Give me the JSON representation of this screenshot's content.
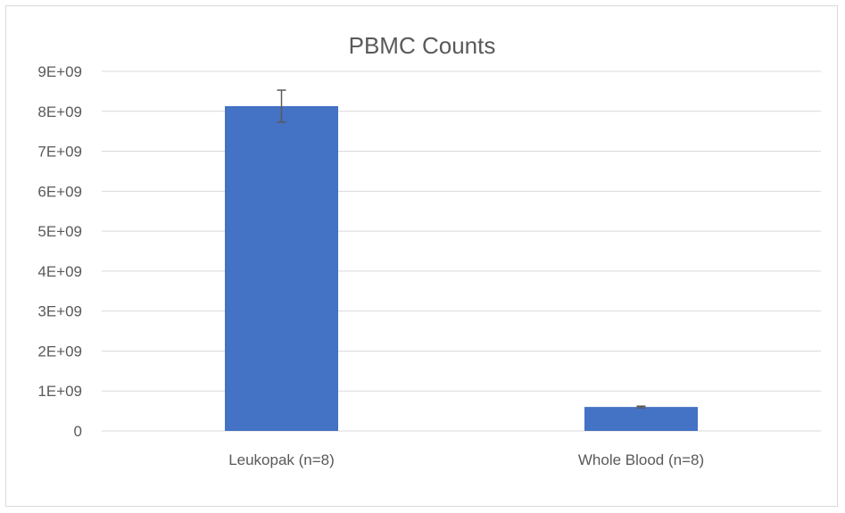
{
  "chart_data": {
    "type": "bar",
    "title": "PBMC Counts",
    "xlabel": "",
    "ylabel": "",
    "categories": [
      "Leukopak (n=8)",
      "Whole Blood (n=8)"
    ],
    "values": [
      8130000000,
      600000000
    ],
    "error_bars": [
      400000000,
      20000000
    ],
    "ylim": [
      0,
      9000000000
    ],
    "y_tick_values": [
      0,
      1000000000,
      2000000000,
      3000000000,
      4000000000,
      5000000000,
      6000000000,
      7000000000,
      8000000000,
      9000000000
    ],
    "y_tick_labels": [
      "0",
      "1E+09",
      "2E+09",
      "3E+09",
      "4E+09",
      "5E+09",
      "6E+09",
      "7E+09",
      "8E+09",
      "9E+09"
    ],
    "grid": true,
    "legend": "none",
    "colors": {
      "bar": "#4472c4",
      "gridline": "#d9d9d9",
      "error_bar": "#595959",
      "text": "#595959"
    }
  }
}
